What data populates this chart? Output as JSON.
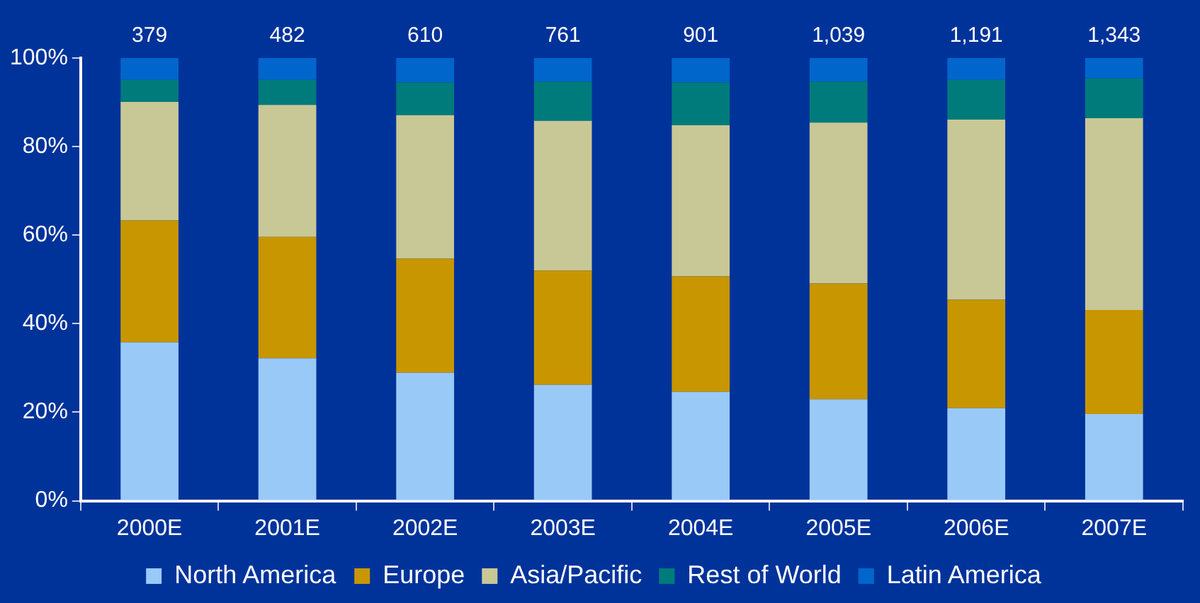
{
  "chart_data": {
    "type": "bar",
    "stacked": true,
    "categories": [
      "2000E",
      "2001E",
      "2002E",
      "2003E",
      "2004E",
      "2005E",
      "2006E",
      "2007E"
    ],
    "series": [
      {
        "name": "North America",
        "color": "#99c9f7",
        "values": [
          35.8,
          32.2,
          28.9,
          26.2,
          24.6,
          22.9,
          20.9,
          19.6
        ]
      },
      {
        "name": "Europe",
        "color": "#c89600",
        "values": [
          27.5,
          27.4,
          25.8,
          25.8,
          26.1,
          26.2,
          24.5,
          23.5
        ]
      },
      {
        "name": "Asia/Pacific",
        "color": "#c8c896",
        "values": [
          26.8,
          29.8,
          32.4,
          33.8,
          34.1,
          36.3,
          40.7,
          43.3
        ]
      },
      {
        "name": "Rest of World",
        "color": "#007b7b",
        "values": [
          5.0,
          5.7,
          7.4,
          8.9,
          9.7,
          9.3,
          9.0,
          9.0
        ]
      },
      {
        "name": "Latin America",
        "color": "#0066cc",
        "values": [
          4.9,
          4.9,
          5.5,
          5.3,
          5.5,
          5.3,
          4.9,
          4.6
        ]
      }
    ],
    "ylim": [
      0,
      100
    ],
    "yticks": [
      {
        "value": 0,
        "label": "0%"
      },
      {
        "value": 20,
        "label": "20%"
      },
      {
        "value": 40,
        "label": "40%"
      },
      {
        "value": 60,
        "label": "60%"
      },
      {
        "value": 80,
        "label": "80%"
      },
      {
        "value": 100,
        "label": "100%"
      }
    ],
    "annotations": [
      "379",
      "482",
      "610",
      "761",
      "901",
      "1,039",
      "1,191",
      "1,343"
    ],
    "grid": false,
    "legend": "bottom"
  }
}
